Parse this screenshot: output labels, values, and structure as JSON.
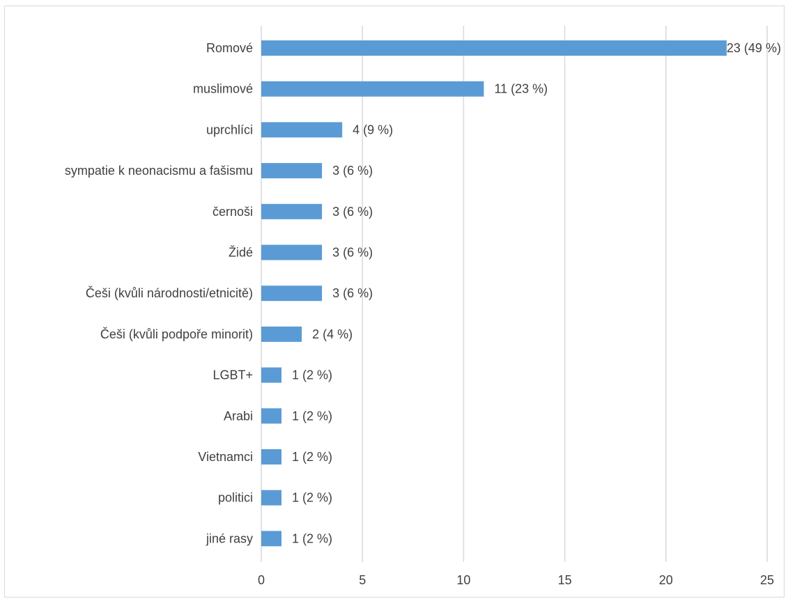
{
  "chart_data": {
    "type": "bar",
    "orientation": "horizontal",
    "categories": [
      "Romové",
      "muslimové",
      "uprchlíci",
      "sympatie k neonacismu a fašismu",
      "černoši",
      "Židé",
      "Češi (kvůli národnosti/etnicitě)",
      "Češi (kvůli podpoře minorit)",
      "LGBT+",
      "Arabi",
      "Vietnamci",
      "politici",
      "jiné rasy"
    ],
    "values": [
      23,
      11,
      4,
      3,
      3,
      3,
      3,
      2,
      1,
      1,
      1,
      1,
      1
    ],
    "data_labels": [
      "23 (49 %)",
      "11 (23 %)",
      "4 (9 %)",
      "3 (6 %)",
      "3 (6 %)",
      "3 (6 %)",
      "3 (6 %)",
      "2 (4 %)",
      "1 (2 %)",
      "1 (2 %)",
      "1 (2 %)",
      "1 (2 %)",
      "1 (2 %)"
    ],
    "xlim": [
      0,
      25
    ],
    "xticks": [
      0,
      5,
      10,
      15,
      20,
      25
    ],
    "grid": true,
    "bar_color": "#5b9bd5",
    "grid_color": "#d9d9d9",
    "title": "",
    "xlabel": "",
    "ylabel": ""
  }
}
